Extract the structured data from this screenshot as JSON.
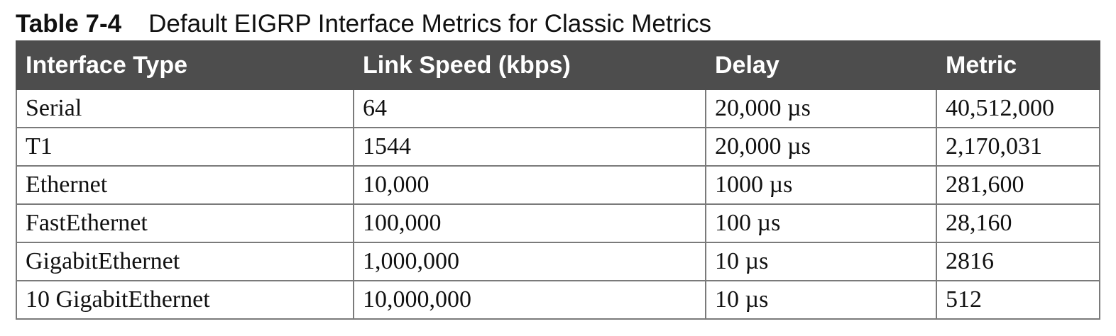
{
  "caption": {
    "label": "Table 7-4",
    "title": "Default EIGRP Interface Metrics for Classic Metrics"
  },
  "table": {
    "headers": [
      "Interface Type",
      "Link Speed (kbps)",
      "Delay",
      "Metric"
    ],
    "rows": [
      [
        "Serial",
        "64",
        "20,000 µs",
        "40,512,000"
      ],
      [
        "T1",
        "1544",
        "20,000 µs",
        "2,170,031"
      ],
      [
        "Ethernet",
        "10,000",
        "1000 µs",
        "281,600"
      ],
      [
        "FastEthernet",
        "100,000",
        "100 µs",
        "28,160"
      ],
      [
        "GigabitEthernet",
        "1,000,000",
        "10 µs",
        "2816"
      ],
      [
        "10 GigabitEthernet",
        "10,000,000",
        "10 µs",
        "512"
      ]
    ]
  }
}
